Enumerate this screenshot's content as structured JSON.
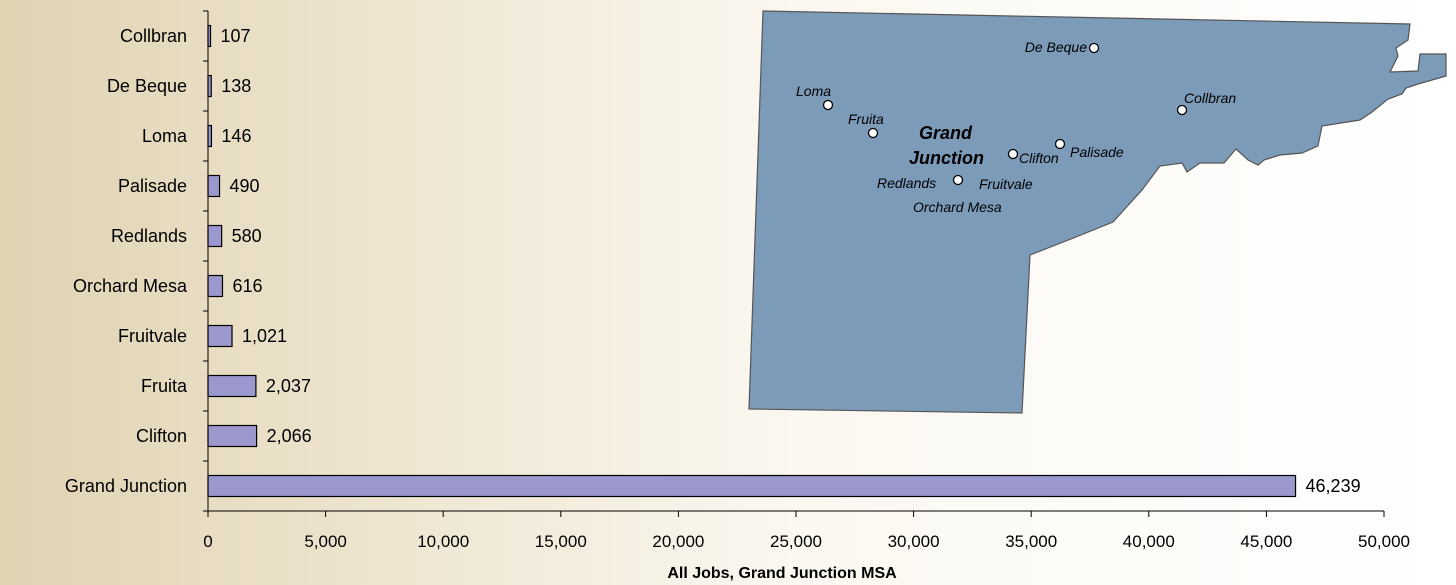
{
  "chart_data": {
    "type": "bar",
    "orientation": "horizontal",
    "categories": [
      "Collbran",
      "De Beque",
      "Loma",
      "Palisade",
      "Redlands",
      "Orchard Mesa",
      "Fruitvale",
      "Fruita",
      "Clifton",
      "Grand Junction"
    ],
    "values": [
      107,
      138,
      146,
      490,
      580,
      616,
      1021,
      2037,
      2066,
      46239
    ],
    "value_labels": [
      "107",
      "138",
      "146",
      "490",
      "580",
      "616",
      "1,021",
      "2,037",
      "2,066",
      "46,239"
    ],
    "xlabel": "All Jobs, Grand Junction MSA",
    "ylabel": "",
    "xlim": [
      0,
      50000
    ],
    "xticks": [
      0,
      5000,
      10000,
      15000,
      20000,
      25000,
      30000,
      35000,
      40000,
      45000,
      50000
    ],
    "xtick_labels": [
      "0",
      "5,000",
      "10,000",
      "15,000",
      "20,000",
      "25,000",
      "30,000",
      "35,000",
      "40,000",
      "45,000",
      "50,000"
    ],
    "grid": false,
    "bar_color": "#9a98cc"
  },
  "map": {
    "fill_color": "#7b9bb8",
    "places": {
      "de_beque": "De Beque",
      "loma": "Loma",
      "collbran": "Collbran",
      "fruita": "Fruita",
      "grand": "Grand",
      "junction": "Junction",
      "clifton": "Clifton",
      "palisade": "Palisade",
      "redlands": "Redlands",
      "fruitvale": "Fruitvale",
      "orchard_mesa": "Orchard Mesa"
    }
  }
}
